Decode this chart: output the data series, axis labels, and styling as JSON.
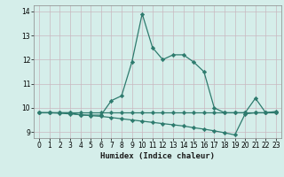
{
  "xlabel": "Humidex (Indice chaleur)",
  "x": [
    0,
    1,
    2,
    3,
    4,
    5,
    6,
    7,
    8,
    9,
    10,
    11,
    12,
    13,
    14,
    15,
    16,
    17,
    18,
    19,
    20,
    21,
    22,
    23
  ],
  "y_main": [
    9.8,
    9.8,
    9.8,
    9.8,
    9.7,
    9.7,
    9.7,
    10.3,
    10.5,
    11.9,
    13.9,
    12.5,
    12.0,
    12.2,
    12.2,
    11.9,
    11.5,
    10.0,
    9.8,
    9.8,
    9.8,
    10.4,
    9.8,
    9.85
  ],
  "y_flat": [
    9.8,
    9.8,
    9.8,
    9.8,
    9.8,
    9.8,
    9.8,
    9.8,
    9.8,
    9.8,
    9.8,
    9.8,
    9.8,
    9.8,
    9.8,
    9.8,
    9.8,
    9.8,
    9.8,
    9.8,
    9.8,
    9.8,
    9.8,
    9.8
  ],
  "y_decline": [
    9.8,
    9.8,
    9.78,
    9.75,
    9.72,
    9.68,
    9.65,
    9.6,
    9.55,
    9.5,
    9.45,
    9.4,
    9.35,
    9.3,
    9.25,
    9.18,
    9.12,
    9.05,
    8.97,
    8.88,
    9.75,
    9.8,
    9.8,
    9.82
  ],
  "line_color": "#2e7b6e",
  "bg_color": "#d5eeea",
  "ylim": [
    8.75,
    14.25
  ],
  "yticks": [
    9,
    10,
    11,
    12,
    13,
    14
  ],
  "xticks": [
    0,
    1,
    2,
    3,
    4,
    5,
    6,
    7,
    8,
    9,
    10,
    11,
    12,
    13,
    14,
    15,
    16,
    17,
    18,
    19,
    20,
    21,
    22,
    23
  ]
}
